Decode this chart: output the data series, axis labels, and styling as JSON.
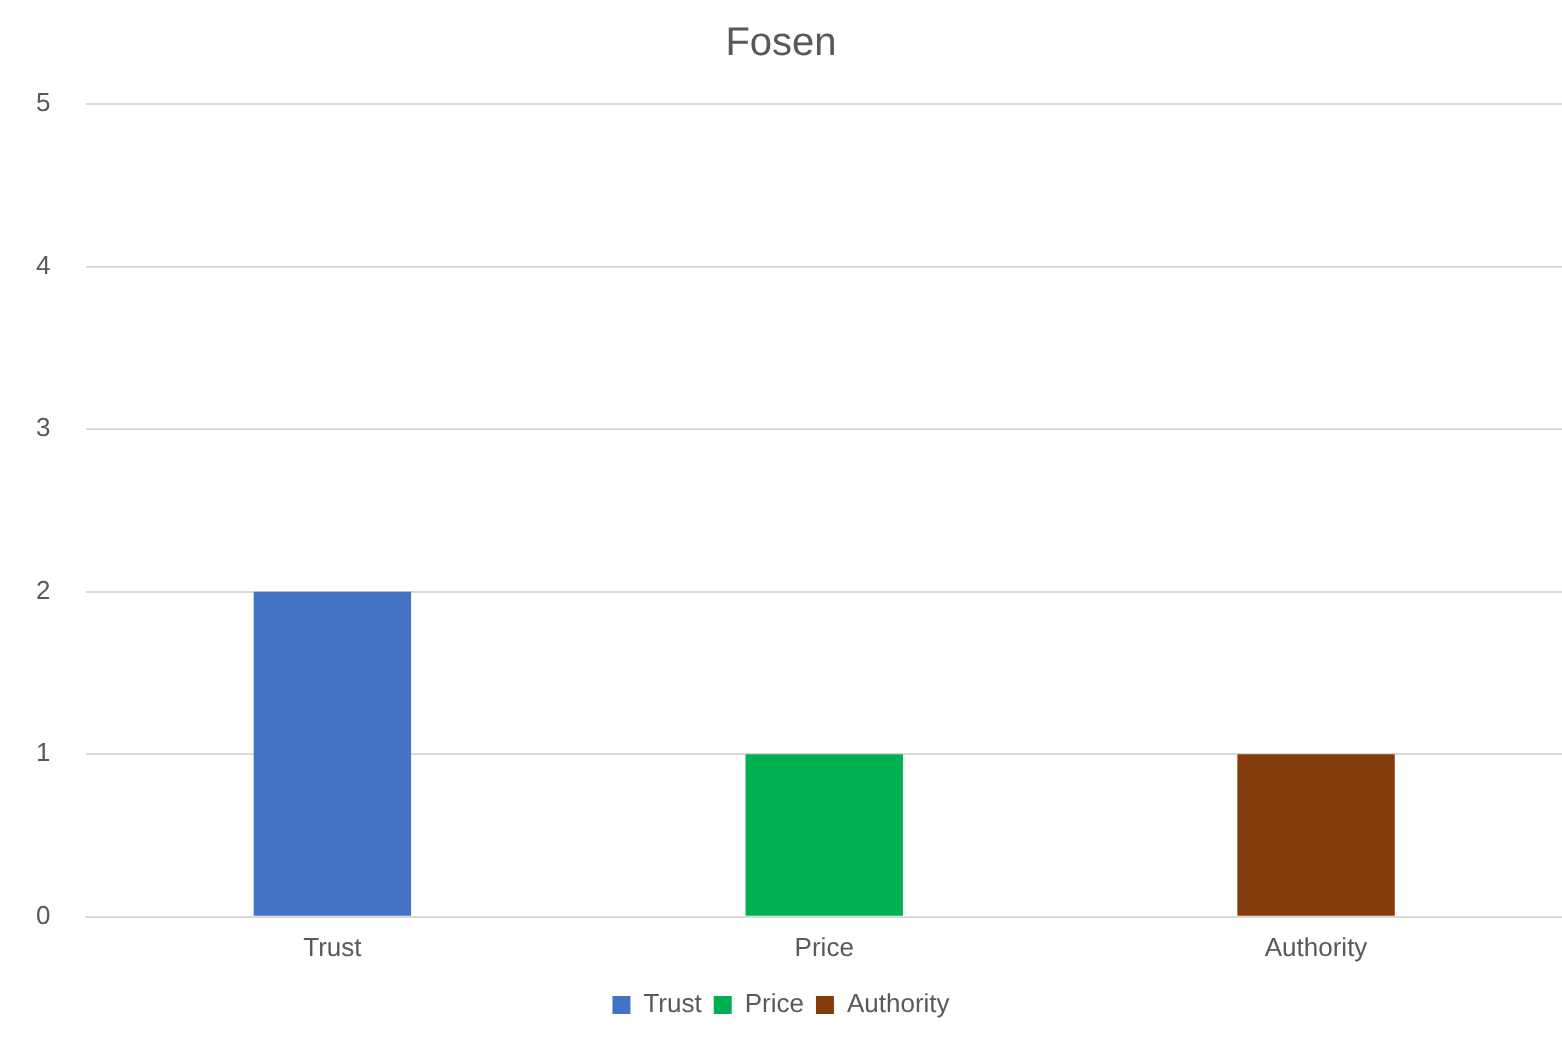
{
  "chart_data": {
    "type": "bar",
    "title": "Fosen",
    "categories": [
      "Trust",
      "Price",
      "Authority"
    ],
    "series": [
      {
        "name": "Trust",
        "color": "#4472c4",
        "values": [
          2,
          null,
          null
        ]
      },
      {
        "name": "Price",
        "color": "#00b050",
        "values": [
          null,
          1,
          null
        ]
      },
      {
        "name": "Authority",
        "color": "#843c0c",
        "values": [
          null,
          null,
          1
        ]
      }
    ],
    "ylim": [
      0,
      5
    ],
    "yticks": [
      0,
      1,
      2,
      3,
      4,
      5
    ],
    "grid": "y",
    "legend": "bottom"
  }
}
